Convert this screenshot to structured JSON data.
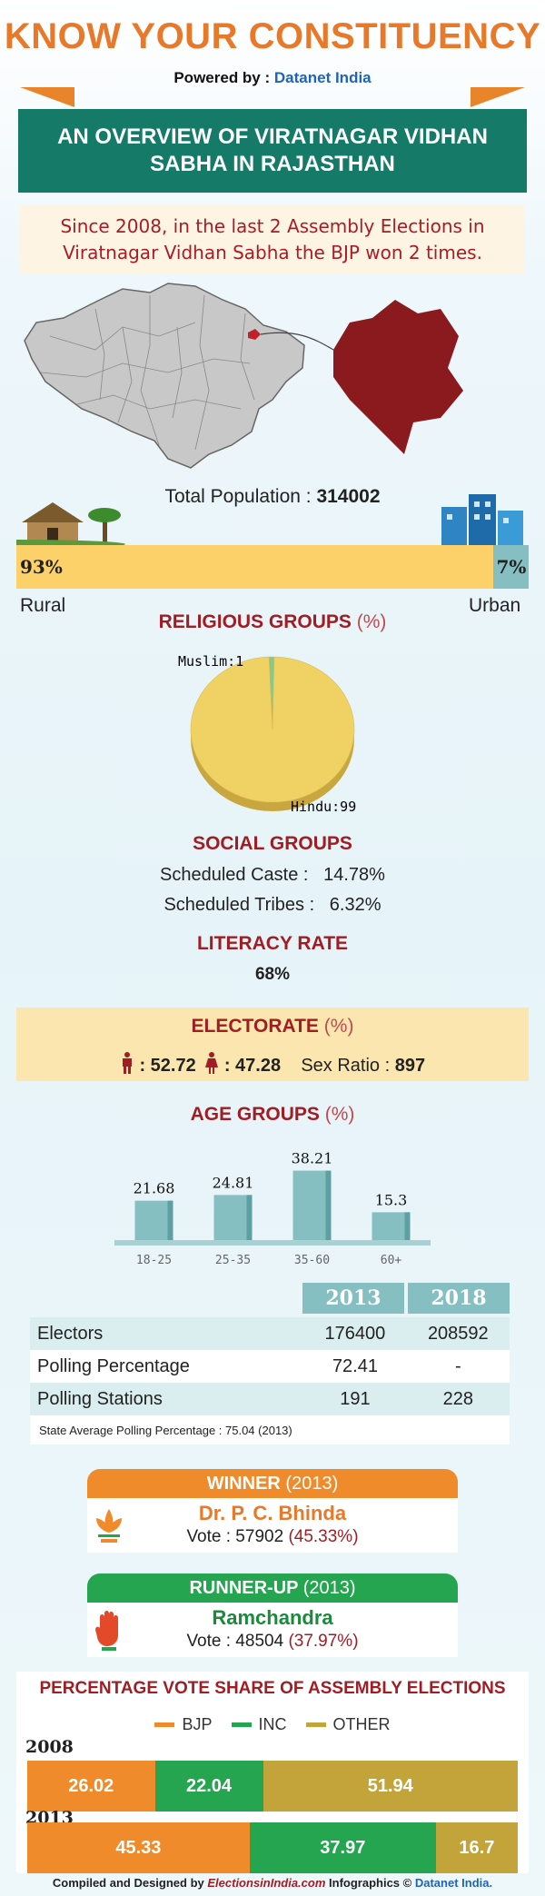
{
  "header": {
    "title": "KNOW YOUR CONSTITUENCY",
    "powered_prefix": "Powered by :",
    "powered_brand": "Datanet India",
    "banner_line1": "AN OVERVIEW OF VIRATNAGAR VIDHAN",
    "banner_line2": "SABHA IN RAJASTHAN",
    "summary_line1": "Since 2008, in the last 2 Assembly Elections in",
    "summary_line2": "Viratnagar Vidhan Sabha the BJP won 2 times."
  },
  "colors": {
    "accent_orange": "#e8782a",
    "banner_green": "#167a68",
    "heading_red": "#a01d24",
    "map_red": "#8b1a1f",
    "bjp": "#ef8b2a",
    "inc": "#25a54f",
    "other": "#c3a43a"
  },
  "population": {
    "label": "Total Population :",
    "value": "314002",
    "rural_pct": 93,
    "urban_pct": 7,
    "rural_text": "93%",
    "urban_text": "7%",
    "rural_label": "Rural",
    "urban_label": "Urban"
  },
  "religion": {
    "heading": "RELIGIOUS GROUPS",
    "unit": "(%)",
    "muslim_label": "Muslim:1",
    "hindu_label": "Hindu:99"
  },
  "social": {
    "heading": "SOCIAL GROUPS",
    "sc_label": "Scheduled Caste :",
    "sc_value": "14.78%",
    "st_label": "Scheduled Tribes :",
    "st_value": "6.32%"
  },
  "literacy": {
    "heading": "LITERACY RATE",
    "value": "68%"
  },
  "electorate": {
    "heading": "ELECTORATE",
    "unit": "(%)",
    "male": ": 52.72",
    "female": ": 47.28",
    "sex_ratio_label": "Sex Ratio :",
    "sex_ratio": "897"
  },
  "age": {
    "heading": "AGE GROUPS",
    "unit": "(%)"
  },
  "table": {
    "years": [
      "2013",
      "2018"
    ],
    "rows": [
      {
        "label": "Electors",
        "v2013": "176400",
        "v2018": "208592"
      },
      {
        "label": "Polling Percentage",
        "v2013": "72.41",
        "v2018": "-"
      },
      {
        "label": "Polling Stations",
        "v2013": "191",
        "v2018": "228"
      }
    ],
    "note": "State Average Polling Percentage : 75.04 (2013)"
  },
  "winner": {
    "head": "WINNER",
    "year": "(2013)",
    "name": "Dr. P. C. Bhinda",
    "vote": "Vote : 57902",
    "pct": "(45.33%)"
  },
  "runner": {
    "head": "RUNNER-UP",
    "year": "(2013)",
    "name": "Ramchandra",
    "vote": "Vote : 48504",
    "pct": "(37.97%)"
  },
  "vote_share": {
    "heading": "PERCENTAGE VOTE SHARE OF ASSEMBLY ELECTIONS",
    "legend": [
      "BJP",
      "INC",
      "OTHER"
    ]
  },
  "footer": {
    "prefix": "Compiled and Designed by",
    "site": "ElectionsinIndia.com",
    "mid": "Infographics ©",
    "brand": "Datanet India."
  },
  "chart_data": [
    {
      "type": "bar",
      "title": "Rural / Urban",
      "categories": [
        "Rural",
        "Urban"
      ],
      "values": [
        93,
        7
      ]
    },
    {
      "type": "pie",
      "title": "RELIGIOUS GROUPS (%)",
      "labels": [
        "Hindu",
        "Muslim"
      ],
      "values": [
        99,
        1
      ]
    },
    {
      "type": "bar",
      "title": "AGE GROUPS (%)",
      "categories": [
        "18-25",
        "25-35",
        "35-60",
        "60+"
      ],
      "values": [
        21.68,
        24.81,
        38.21,
        15.3
      ],
      "value_labels": [
        "21.68",
        "24.81",
        "38.21",
        "15.3"
      ]
    },
    {
      "type": "bar",
      "title": "PERCENTAGE VOTE SHARE OF ASSEMBLY ELECTIONS",
      "stacked": true,
      "orientation": "horizontal",
      "categories": [
        "2008",
        "2013"
      ],
      "series": [
        {
          "name": "BJP",
          "values": [
            26.02,
            45.33
          ],
          "labels": [
            "26.02",
            "45.33"
          ]
        },
        {
          "name": "INC",
          "values": [
            22.04,
            37.97
          ],
          "labels": [
            "22.04",
            "37.97"
          ]
        },
        {
          "name": "OTHER",
          "values": [
            51.94,
            16.7
          ],
          "labels": [
            "51.94",
            "16.7"
          ]
        }
      ]
    }
  ]
}
